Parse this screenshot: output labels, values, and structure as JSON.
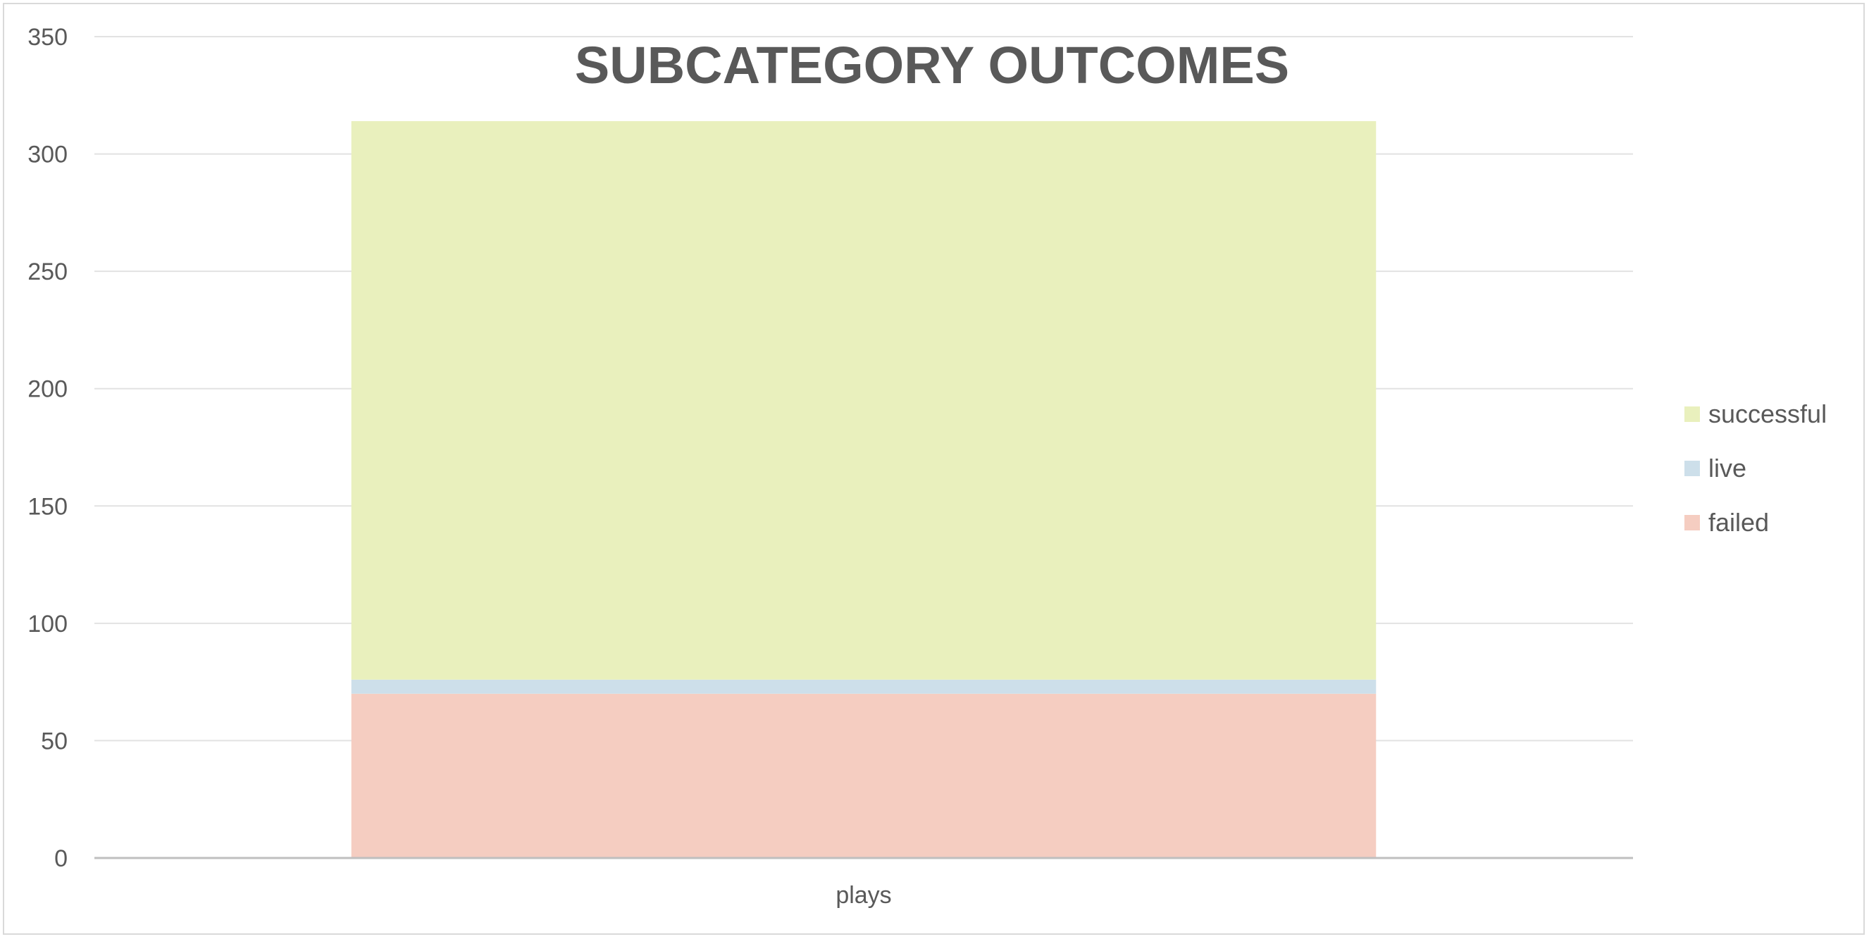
{
  "chart_data": {
    "type": "bar",
    "stacked": true,
    "title": "SUBCATEGORY OUTCOMES",
    "xlabel": "",
    "ylabel": "",
    "categories": [
      "plays"
    ],
    "series": [
      {
        "name": "failed",
        "values": [
          70
        ],
        "color": "#f5cdc1"
      },
      {
        "name": "live",
        "values": [
          6
        ],
        "color": "#cddfea"
      },
      {
        "name": "successful",
        "values": [
          238
        ],
        "color": "#e9f0bd"
      }
    ],
    "ylim": [
      0,
      350
    ],
    "yticks": [
      "0",
      "50",
      "100",
      "150",
      "200",
      "250",
      "300",
      "350"
    ],
    "grid": true,
    "legend": {
      "position": "right",
      "order": [
        "successful",
        "live",
        "failed"
      ]
    },
    "colors": {
      "grid": "#e2e2e2",
      "axis": "#bfbfbf",
      "text": "#595959",
      "border": "#d9d9d9"
    }
  }
}
